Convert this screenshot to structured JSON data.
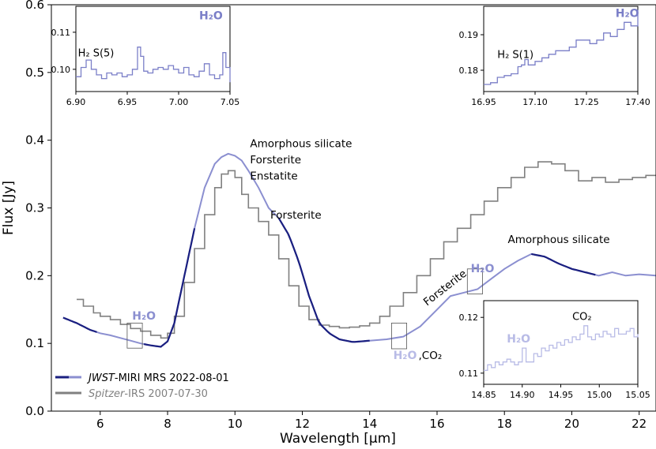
{
  "chart_data": [
    {
      "id": "main",
      "type": "line",
      "xlabel": "Wavelength [μm]",
      "ylabel": "Flux [Jy]",
      "xlim": [
        4.55,
        22.5
      ],
      "ylim": [
        0.0,
        0.6
      ],
      "xticks": [
        6,
        8,
        10,
        12,
        14,
        16,
        18,
        20,
        22
      ],
      "yticks": [
        0.0,
        0.1,
        0.2,
        0.3,
        0.4,
        0.5,
        0.6
      ],
      "xtick_labels": [
        "6",
        "8",
        "10",
        "12",
        "14",
        "16",
        "18",
        "20",
        "22"
      ],
      "ytick_labels": [
        "0.0",
        "0.1",
        "0.2",
        "0.3",
        "0.4",
        "0.5",
        "0.6"
      ],
      "legend": {
        "placement": "lower-left",
        "entries": [
          {
            "instrument": "JWST",
            "rest": "-MIRI MRS 2022-08-01",
            "color": "#1a1f80",
            "color2": "#8b8fd0"
          },
          {
            "instrument": "Spitzer",
            "rest": "-IRS 2007-07-30",
            "color": "#808080",
            "color2": "#808080"
          }
        ]
      },
      "series": [
        {
          "key": "spitzer",
          "color": "#808080",
          "x": [
            5.3,
            5.5,
            5.8,
            6.0,
            6.3,
            6.6,
            6.9,
            7.2,
            7.5,
            7.8,
            8.0,
            8.2,
            8.5,
            8.8,
            9.1,
            9.4,
            9.6,
            9.8,
            10.0,
            10.2,
            10.4,
            10.7,
            11.0,
            11.3,
            11.6,
            11.9,
            12.2,
            12.5,
            12.8,
            13.1,
            13.4,
            13.7,
            14.0,
            14.3,
            14.6,
            15.0,
            15.4,
            15.8,
            16.2,
            16.6,
            17.0,
            17.4,
            17.8,
            18.2,
            18.6,
            19.0,
            19.4,
            19.8,
            20.2,
            20.6,
            21.0,
            21.4,
            21.8,
            22.2,
            22.5
          ],
          "y": [
            0.165,
            0.155,
            0.145,
            0.14,
            0.135,
            0.128,
            0.122,
            0.118,
            0.112,
            0.108,
            0.115,
            0.14,
            0.19,
            0.24,
            0.29,
            0.33,
            0.35,
            0.355,
            0.345,
            0.32,
            0.3,
            0.28,
            0.26,
            0.225,
            0.185,
            0.155,
            0.135,
            0.127,
            0.125,
            0.123,
            0.124,
            0.126,
            0.13,
            0.14,
            0.155,
            0.175,
            0.2,
            0.225,
            0.25,
            0.27,
            0.29,
            0.31,
            0.33,
            0.345,
            0.36,
            0.368,
            0.365,
            0.355,
            0.34,
            0.345,
            0.338,
            0.342,
            0.345,
            0.348,
            0.349
          ]
        },
        {
          "key": "jwst",
          "color": "#1a1f80",
          "color2": "#8b8fd0",
          "x": [
            4.9,
            5.3,
            5.7,
            6.0,
            6.3,
            6.6,
            6.9,
            7.2,
            7.5,
            7.8,
            8.0,
            8.2,
            8.5,
            8.8,
            9.1,
            9.4,
            9.6,
            9.8,
            10.0,
            10.2,
            10.4,
            10.7,
            11.0,
            11.3,
            11.6,
            11.9,
            12.2,
            12.5,
            12.8,
            13.1,
            13.5,
            14.0,
            14.5,
            15.0,
            15.5,
            16.0,
            16.4,
            16.8,
            17.2,
            17.6,
            18.0,
            18.4,
            18.8,
            19.2,
            19.6,
            20.0,
            20.4,
            20.8,
            21.2,
            21.6,
            22.0,
            22.5
          ],
          "y": [
            0.138,
            0.13,
            0.12,
            0.115,
            0.112,
            0.108,
            0.104,
            0.1,
            0.097,
            0.095,
            0.103,
            0.13,
            0.2,
            0.27,
            0.33,
            0.365,
            0.375,
            0.38,
            0.377,
            0.37,
            0.355,
            0.33,
            0.3,
            0.285,
            0.26,
            0.22,
            0.17,
            0.13,
            0.115,
            0.106,
            0.102,
            0.104,
            0.106,
            0.11,
            0.125,
            0.15,
            0.17,
            0.175,
            0.18,
            0.195,
            0.21,
            0.222,
            0.232,
            0.228,
            0.218,
            0.21,
            0.205,
            0.2,
            0.205,
            0.2,
            0.202,
            0.2
          ]
        }
      ],
      "jwst_dark_ranges": [
        [
          4.9,
          5.9
        ],
        [
          7.3,
          8.8
        ],
        [
          11.3,
          14.0
        ],
        [
          18.8,
          20.7
        ]
      ],
      "annotations": [
        {
          "text": "Amorphous silicate",
          "x": 10.45,
          "y": 0.39
        },
        {
          "text": "Forsterite",
          "x": 10.45,
          "y": 0.366
        },
        {
          "text": "Enstatite",
          "x": 10.45,
          "y": 0.342
        },
        {
          "text": "Forsterite",
          "x": 11.05,
          "y": 0.284
        },
        {
          "text": "Amorphous silicate",
          "x": 18.1,
          "y": 0.248
        },
        {
          "text": "Forsterite",
          "x": 15.7,
          "y": 0.155,
          "rotate": -38
        },
        {
          "text": "H₂O",
          "x": 6.95,
          "y": 0.135,
          "color": "#8b8fd0",
          "bold": true
        },
        {
          "text": "H₂O",
          "x": 17.0,
          "y": 0.205,
          "color": "#8b8fd0",
          "bold": true
        },
        {
          "text": "H₂O",
          "x": 14.7,
          "y": 0.077,
          "color": "#b8bbe6",
          "bold": true
        },
        {
          "text": ",CO₂",
          "x": 15.45,
          "y": 0.077
        }
      ],
      "boxes": [
        {
          "x0": 6.8,
          "x1": 7.25,
          "y0": 0.093,
          "y1": 0.13
        },
        {
          "x0": 14.65,
          "x1": 15.1,
          "y0": 0.092,
          "y1": 0.13
        },
        {
          "x0": 16.9,
          "x1": 17.35,
          "y0": 0.173,
          "y1": 0.21
        }
      ]
    },
    {
      "id": "inset-h2s5",
      "type": "line",
      "xlim": [
        6.9,
        7.05
      ],
      "ylim": [
        0.094,
        0.117
      ],
      "xticks": [
        6.9,
        6.95,
        7.0,
        7.05
      ],
      "yticks": [
        0.1,
        0.11
      ],
      "xtick_labels": [
        "6.90",
        "6.95",
        "7.00",
        "7.05"
      ],
      "ytick_labels": [
        "0.10",
        "0.11"
      ],
      "color": "#7b7fc8",
      "labels": [
        {
          "text": "H₂ S(5)",
          "x": 6.902,
          "y": 0.1035
        },
        {
          "text": "H₂O",
          "x": 7.02,
          "y": 0.1135,
          "color": "#7b7fc8",
          "bold": true
        }
      ],
      "x": [
        6.9,
        6.905,
        6.91,
        6.915,
        6.92,
        6.925,
        6.93,
        6.935,
        6.94,
        6.945,
        6.95,
        6.955,
        6.96,
        6.963,
        6.966,
        6.97,
        6.975,
        6.98,
        6.985,
        6.99,
        6.995,
        7.0,
        7.005,
        7.01,
        7.015,
        7.02,
        7.025,
        7.03,
        7.035,
        7.04,
        7.043,
        7.046,
        7.05
      ],
      "y": [
        0.098,
        0.1005,
        0.1025,
        0.1,
        0.0985,
        0.0975,
        0.099,
        0.0985,
        0.099,
        0.098,
        0.0985,
        0.1,
        0.106,
        0.1035,
        0.0995,
        0.099,
        0.1,
        0.1005,
        0.1,
        0.101,
        0.1,
        0.099,
        0.1005,
        0.0985,
        0.098,
        0.0995,
        0.1015,
        0.0985,
        0.0975,
        0.0985,
        0.1045,
        0.1005,
        0.0965
      ]
    },
    {
      "id": "inset-h2s1",
      "type": "line",
      "xlim": [
        16.95,
        17.4
      ],
      "ylim": [
        0.174,
        0.198
      ],
      "xticks": [
        16.95,
        17.1,
        17.25,
        17.4
      ],
      "yticks": [
        0.18,
        0.19
      ],
      "xtick_labels": [
        "16.95",
        "17.10",
        "17.25",
        "17.40"
      ],
      "ytick_labels": [
        "0.18",
        "0.19"
      ],
      "color": "#7b7fc8",
      "labels": [
        {
          "text": "H₂ S(1)",
          "x": 16.99,
          "y": 0.1835
        },
        {
          "text": "H₂O",
          "x": 17.335,
          "y": 0.195,
          "color": "#7b7fc8",
          "bold": true
        }
      ],
      "x": [
        16.95,
        16.97,
        16.99,
        17.01,
        17.03,
        17.05,
        17.06,
        17.07,
        17.08,
        17.1,
        17.12,
        17.14,
        17.16,
        17.18,
        17.2,
        17.22,
        17.24,
        17.26,
        17.28,
        17.3,
        17.32,
        17.34,
        17.36,
        17.38,
        17.4
      ],
      "y": [
        0.176,
        0.1765,
        0.178,
        0.1785,
        0.179,
        0.181,
        0.1815,
        0.183,
        0.1815,
        0.1825,
        0.1835,
        0.1845,
        0.1855,
        0.1855,
        0.1865,
        0.1885,
        0.1885,
        0.1875,
        0.1885,
        0.1905,
        0.1895,
        0.1915,
        0.1935,
        0.1925,
        0.197
      ]
    },
    {
      "id": "inset-co2",
      "type": "line",
      "xlim": [
        14.85,
        15.05
      ],
      "ylim": [
        0.108,
        0.123
      ],
      "xticks": [
        14.85,
        14.9,
        14.95,
        15.0,
        15.05
      ],
      "yticks": [
        0.11,
        0.12
      ],
      "xtick_labels": [
        "14.85",
        "14.90",
        "14.95",
        "15.00",
        "15.05"
      ],
      "ytick_labels": [
        "0.11",
        "0.12"
      ],
      "color": "#b8bbe6",
      "labels": [
        {
          "text": "H₂O",
          "x": 14.88,
          "y": 0.1155,
          "color": "#b8bbe6",
          "bold": true
        },
        {
          "text": "CO₂",
          "x": 14.965,
          "y": 0.1195
        }
      ],
      "x": [
        14.85,
        14.855,
        14.86,
        14.865,
        14.87,
        14.875,
        14.88,
        14.885,
        14.89,
        14.895,
        14.9,
        14.905,
        14.91,
        14.915,
        14.92,
        14.925,
        14.93,
        14.935,
        14.94,
        14.945,
        14.95,
        14.955,
        14.96,
        14.965,
        14.97,
        14.975,
        14.98,
        14.985,
        14.99,
        14.995,
        15.0,
        15.005,
        15.01,
        15.015,
        15.02,
        15.025,
        15.03,
        15.035,
        15.04,
        15.045,
        15.05
      ],
      "y": [
        0.1105,
        0.1115,
        0.111,
        0.112,
        0.1115,
        0.112,
        0.1125,
        0.112,
        0.1115,
        0.112,
        0.1145,
        0.112,
        0.112,
        0.1135,
        0.113,
        0.1145,
        0.114,
        0.115,
        0.1145,
        0.1155,
        0.115,
        0.116,
        0.1155,
        0.1165,
        0.116,
        0.117,
        0.1185,
        0.1165,
        0.116,
        0.117,
        0.1165,
        0.1175,
        0.117,
        0.1165,
        0.118,
        0.117,
        0.117,
        0.1175,
        0.118,
        0.1165,
        0.117
      ]
    }
  ]
}
